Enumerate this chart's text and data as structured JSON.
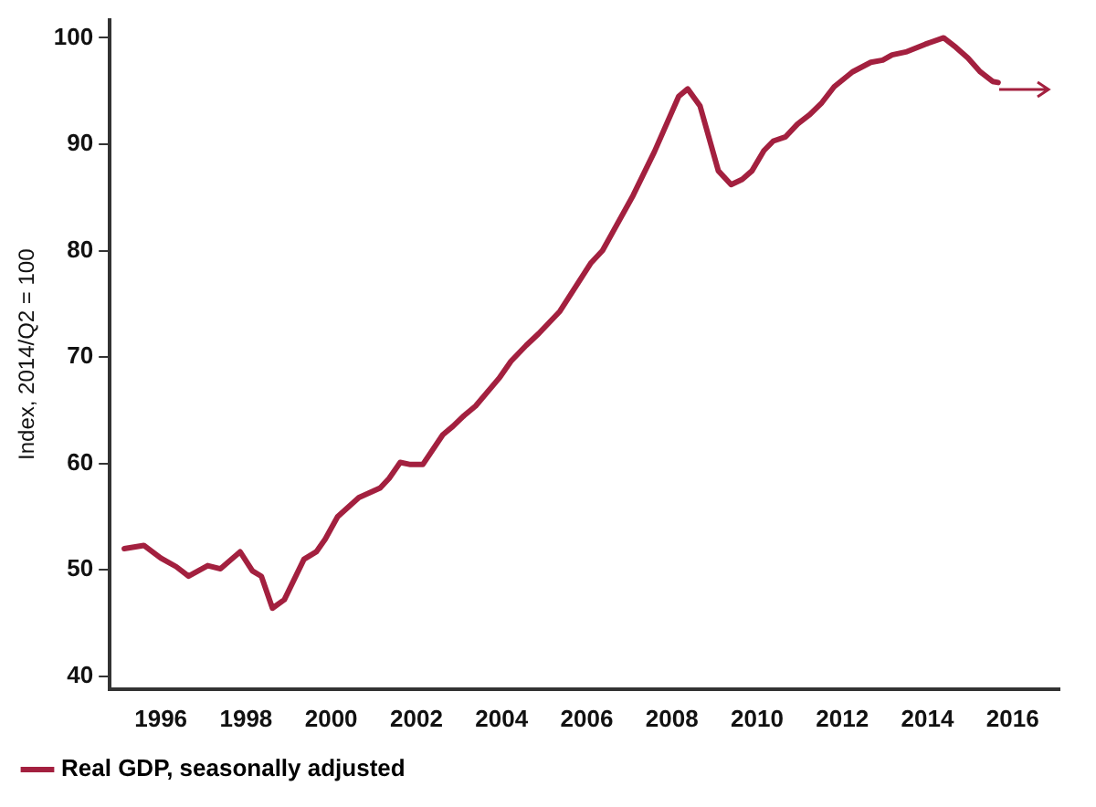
{
  "chart_data": {
    "type": "line",
    "ylabel": "Index, 2014/Q2 = 100",
    "xlim": [
      1994.8,
      2017.1
    ],
    "xticks": [
      1996,
      1998,
      2000,
      2002,
      2004,
      2006,
      2008,
      2010,
      2012,
      2014,
      2016
    ],
    "ylim": [
      38.8,
      101.7
    ],
    "yticks": [
      40,
      50,
      60,
      70,
      80,
      90,
      100
    ],
    "grid": false,
    "legend": "bottom left",
    "marker": "none",
    "line_style": "solid",
    "series": [
      {
        "name": "Real GDP, seasonally adjusted",
        "color": "#a3203f",
        "x": [
          1995.14,
          1995.6,
          1996.0,
          1996.36,
          1996.65,
          1997.1,
          1997.4,
          1997.86,
          1998.15,
          1998.36,
          1998.62,
          1998.9,
          1999.36,
          1999.65,
          1999.86,
          2000.15,
          2000.65,
          2001.15,
          2001.36,
          2001.62,
          2001.86,
          2002.15,
          2002.62,
          2002.86,
          2003.12,
          2003.39,
          2003.94,
          2004.22,
          2004.58,
          2004.87,
          2005.37,
          2006.09,
          2006.37,
          2007.09,
          2007.59,
          2008.16,
          2008.37,
          2008.66,
          2009.09,
          2009.39,
          2009.65,
          2009.88,
          2010.16,
          2010.38,
          2010.67,
          2010.95,
          2011.24,
          2011.52,
          2011.81,
          2012.24,
          2012.67,
          2012.95,
          2013.17,
          2013.52,
          2013.95,
          2014.38,
          2014.67,
          2014.95,
          2015.24,
          2015.53,
          2015.66
        ],
        "values": [
          52.0,
          52.3,
          51.1,
          50.3,
          49.4,
          50.4,
          50.1,
          51.7,
          49.9,
          49.4,
          46.4,
          47.2,
          51.0,
          51.7,
          52.9,
          55.0,
          56.8,
          57.7,
          58.6,
          60.1,
          59.9,
          59.9,
          62.7,
          63.5,
          64.5,
          65.4,
          68.0,
          69.6,
          71.1,
          72.2,
          74.3,
          78.8,
          80.0,
          85.2,
          89.3,
          94.5,
          95.2,
          93.6,
          87.5,
          86.2,
          86.7,
          87.5,
          89.4,
          90.3,
          90.7,
          91.9,
          92.8,
          93.9,
          95.4,
          96.8,
          97.7,
          97.9,
          98.4,
          98.7,
          99.4,
          100.0,
          99.1,
          98.1,
          96.8,
          95.9,
          95.8
        ]
      }
    ]
  }
}
